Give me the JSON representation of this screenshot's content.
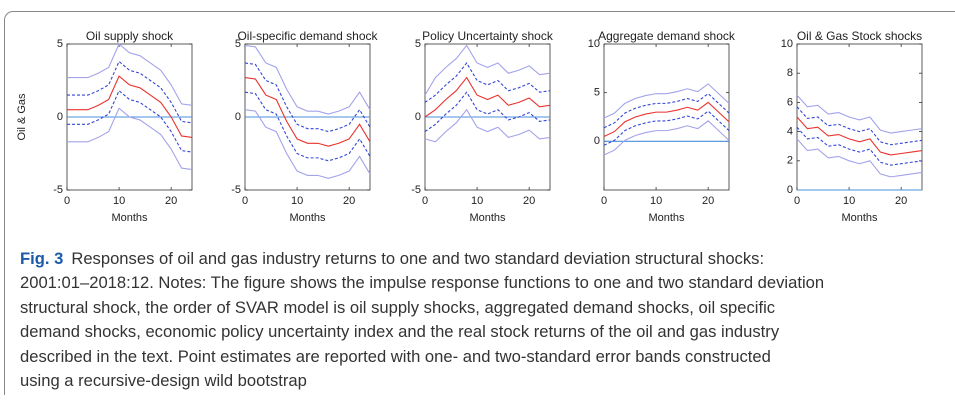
{
  "chart_data": [
    {
      "type": "line",
      "title": "Oil supply shock",
      "xlabel": "Months",
      "ylabel": "Oil & Gas",
      "x": [
        0,
        2,
        4,
        6,
        8,
        10,
        12,
        14,
        16,
        18,
        20,
        22,
        24
      ],
      "xlim": [
        0,
        24
      ],
      "xticks": [
        0,
        10,
        20
      ],
      "ylim": [
        -5,
        5
      ],
      "yticks": [
        -5,
        0,
        5
      ],
      "reference_line": 0,
      "reference_color": "#4a8fdc",
      "series": [
        {
          "color": "#a3a3ea",
          "linestyle": "solid",
          "values": [
            2.7,
            2.7,
            2.7,
            3.0,
            3.4,
            5.0,
            4.4,
            4.2,
            3.7,
            3.2,
            2.2,
            0.9,
            0.8
          ]
        },
        {
          "color": "#a3a3ea",
          "linestyle": "solid",
          "values": [
            -1.7,
            -1.7,
            -1.7,
            -1.4,
            -1.0,
            0.6,
            0,
            -0.2,
            -0.7,
            -1.2,
            -2.2,
            -3.5,
            -3.6
          ]
        },
        {
          "color": "#3447d6",
          "linestyle": "dashed",
          "values": [
            1.5,
            1.5,
            1.5,
            1.8,
            2.2,
            3.8,
            3.2,
            3.0,
            2.5,
            2.0,
            1.0,
            -0.3,
            -0.4
          ]
        },
        {
          "color": "#3447d6",
          "linestyle": "dashed",
          "values": [
            -0.5,
            -0.5,
            -0.5,
            -0.2,
            0.2,
            1.8,
            1.2,
            1.0,
            0.5,
            0,
            -1.0,
            -2.3,
            -2.4
          ]
        },
        {
          "color": "#e8332e",
          "linestyle": "solid",
          "values": [
            0.5,
            0.5,
            0.5,
            0.8,
            1.2,
            2.8,
            2.2,
            2.0,
            1.5,
            1.0,
            0,
            -1.3,
            -1.4
          ]
        }
      ]
    },
    {
      "type": "line",
      "title": "Oil-specific demand shock",
      "xlabel": "Months",
      "x": [
        0,
        2,
        4,
        6,
        8,
        10,
        12,
        14,
        16,
        18,
        20,
        22,
        24
      ],
      "xlim": [
        0,
        24
      ],
      "xticks": [
        0,
        10,
        20
      ],
      "ylim": [
        -5,
        5
      ],
      "yticks": [
        -5,
        0,
        5
      ],
      "reference_line": 0,
      "reference_color": "#4a8fdc",
      "series": [
        {
          "color": "#a3a3ea",
          "linestyle": "solid",
          "values": [
            4.9,
            4.8,
            3.7,
            3.4,
            1.9,
            0.7,
            0.4,
            0.4,
            0.2,
            0.4,
            0.7,
            1.7,
            0.5
          ]
        },
        {
          "color": "#a3a3ea",
          "linestyle": "solid",
          "values": [
            0.5,
            0.4,
            -0.7,
            -1.0,
            -2.5,
            -3.7,
            -4.0,
            -4.0,
            -4.2,
            -4.0,
            -3.7,
            -2.7,
            -3.9
          ]
        },
        {
          "color": "#3447d6",
          "linestyle": "dashed",
          "values": [
            3.7,
            3.6,
            2.5,
            2.2,
            0.7,
            -0.5,
            -0.8,
            -0.8,
            -1.0,
            -0.8,
            -0.5,
            0.5,
            -0.7
          ]
        },
        {
          "color": "#3447d6",
          "linestyle": "dashed",
          "values": [
            1.7,
            1.6,
            0.5,
            0.2,
            -1.3,
            -2.5,
            -2.8,
            -2.8,
            -3.0,
            -2.8,
            -2.5,
            -1.5,
            -2.7
          ]
        },
        {
          "color": "#e8332e",
          "linestyle": "solid",
          "values": [
            2.7,
            2.6,
            1.5,
            1.2,
            -0.3,
            -1.5,
            -1.8,
            -1.8,
            -2.0,
            -1.8,
            -1.5,
            -0.5,
            -1.7
          ]
        }
      ]
    },
    {
      "type": "line",
      "title": "Policy Uncertainty shock",
      "xlabel": "Months",
      "x": [
        0,
        2,
        4,
        6,
        8,
        10,
        12,
        14,
        16,
        18,
        20,
        22,
        24
      ],
      "xlim": [
        0,
        24
      ],
      "xticks": [
        0,
        10,
        20
      ],
      "ylim": [
        -5,
        5
      ],
      "yticks": [
        -5,
        0,
        5
      ],
      "reference_line": 0,
      "reference_color": "#4a8fdc",
      "series": [
        {
          "color": "#a3a3ea",
          "linestyle": "solid",
          "values": [
            1.5,
            2.7,
            3.4,
            4.0,
            4.9,
            3.7,
            3.4,
            3.7,
            3.0,
            3.2,
            3.5,
            2.9,
            3.0
          ]
        },
        {
          "color": "#a3a3ea",
          "linestyle": "solid",
          "values": [
            -1.5,
            -1.7,
            -1.0,
            -0.4,
            0.5,
            -0.7,
            -1.0,
            -0.7,
            -1.4,
            -1.2,
            -0.9,
            -1.5,
            -1.4
          ]
        },
        {
          "color": "#3447d6",
          "linestyle": "dashed",
          "values": [
            1.0,
            1.5,
            2.2,
            2.8,
            3.7,
            2.5,
            2.2,
            2.5,
            1.8,
            2.0,
            2.3,
            1.7,
            1.8
          ]
        },
        {
          "color": "#3447d6",
          "linestyle": "dashed",
          "values": [
            -1.0,
            -0.5,
            0.2,
            0.8,
            1.7,
            0.5,
            0.2,
            0.5,
            -0.2,
            0,
            0.3,
            -0.3,
            -0.2
          ]
        },
        {
          "color": "#e8332e",
          "linestyle": "solid",
          "values": [
            0,
            0.5,
            1.2,
            1.8,
            2.7,
            1.5,
            1.2,
            1.5,
            0.8,
            1.0,
            1.3,
            0.7,
            0.8
          ]
        }
      ]
    },
    {
      "type": "line",
      "title": "Aggregate demand shock",
      "xlabel": "Months",
      "x": [
        0,
        2,
        4,
        6,
        8,
        10,
        12,
        14,
        16,
        18,
        20,
        22,
        24
      ],
      "xlim": [
        0,
        24
      ],
      "xticks": [
        0,
        10,
        20
      ],
      "ylim": [
        -5,
        10
      ],
      "yticks": [
        0,
        5,
        10
      ],
      "reference_line": 0,
      "reference_color": "#4a8fdc",
      "series": [
        {
          "color": "#a3a3ea",
          "linestyle": "solid",
          "values": [
            2.4,
            2.9,
            3.9,
            4.4,
            4.7,
            4.9,
            4.9,
            5.1,
            5.4,
            5.1,
            5.9,
            4.9,
            3.9
          ]
        },
        {
          "color": "#a3a3ea",
          "linestyle": "solid",
          "values": [
            -1.4,
            -0.9,
            0.1,
            0.6,
            0.9,
            1.1,
            1.1,
            1.3,
            1.6,
            1.3,
            2.1,
            1.1,
            0.1
          ]
        },
        {
          "color": "#3447d6",
          "linestyle": "dashed",
          "values": [
            1.4,
            1.9,
            2.9,
            3.4,
            3.7,
            3.9,
            3.9,
            4.1,
            4.4,
            4.1,
            4.9,
            3.9,
            2.9
          ]
        },
        {
          "color": "#3447d6",
          "linestyle": "dashed",
          "values": [
            -0.4,
            0.1,
            1.1,
            1.6,
            1.9,
            2.1,
            2.1,
            2.3,
            2.6,
            2.3,
            3.1,
            2.1,
            1.1
          ]
        },
        {
          "color": "#e8332e",
          "linestyle": "solid",
          "values": [
            0.5,
            1.0,
            2.0,
            2.5,
            2.8,
            3.0,
            3.0,
            3.2,
            3.5,
            3.2,
            4.0,
            3.0,
            2.0
          ]
        }
      ]
    },
    {
      "type": "line",
      "title": "Oil & Gas Stock shocks",
      "xlabel": "Months",
      "x": [
        0,
        2,
        4,
        6,
        8,
        10,
        12,
        14,
        16,
        18,
        20,
        22,
        24
      ],
      "xlim": [
        0,
        24
      ],
      "xticks": [
        0,
        10,
        20
      ],
      "ylim": [
        0,
        10
      ],
      "yticks": [
        0,
        2,
        4,
        6,
        8,
        10
      ],
      "reference_line": 0,
      "reference_color": "#4a8fdc",
      "series": [
        {
          "color": "#a3a3ea",
          "linestyle": "solid",
          "values": [
            6.5,
            5.7,
            5.8,
            5.2,
            5.3,
            5.0,
            4.8,
            5.0,
            4.1,
            3.9,
            4.0,
            4.1,
            4.2
          ]
        },
        {
          "color": "#a3a3ea",
          "linestyle": "solid",
          "values": [
            3.5,
            2.7,
            2.8,
            2.2,
            2.3,
            2.0,
            1.8,
            2.0,
            1.1,
            0.9,
            1.0,
            1.1,
            1.2
          ]
        },
        {
          "color": "#3447d6",
          "linestyle": "dashed",
          "values": [
            5.7,
            4.9,
            5.0,
            4.4,
            4.5,
            4.2,
            4.0,
            4.2,
            3.3,
            3.1,
            3.2,
            3.3,
            3.4
          ]
        },
        {
          "color": "#3447d6",
          "linestyle": "dashed",
          "values": [
            4.3,
            3.5,
            3.6,
            3.0,
            3.1,
            2.8,
            2.6,
            2.8,
            1.9,
            1.7,
            1.8,
            1.9,
            2.0
          ]
        },
        {
          "color": "#e8332e",
          "linestyle": "solid",
          "values": [
            5.0,
            4.2,
            4.3,
            3.7,
            3.8,
            3.5,
            3.3,
            3.5,
            2.6,
            2.4,
            2.5,
            2.6,
            2.7
          ]
        }
      ]
    }
  ],
  "caption": {
    "label": "Fig. 3",
    "lines": [
      "Responses of oil and gas industry returns to one and two standard deviation structural shocks:",
      "2001:01–2018:12. Notes: The figure shows the impulse response functions to one and two standard deviation",
      "structural shock, the order of SVAR model is oil supply shocks, aggregated demand shocks, oil specific",
      "demand shocks, economic policy uncertainty index and the real stock returns of the oil and gas industry",
      "described in the text. Point estimates are reported with one- and two-standard error bands constructed",
      "using a recursive-design wild bootstrap"
    ]
  }
}
